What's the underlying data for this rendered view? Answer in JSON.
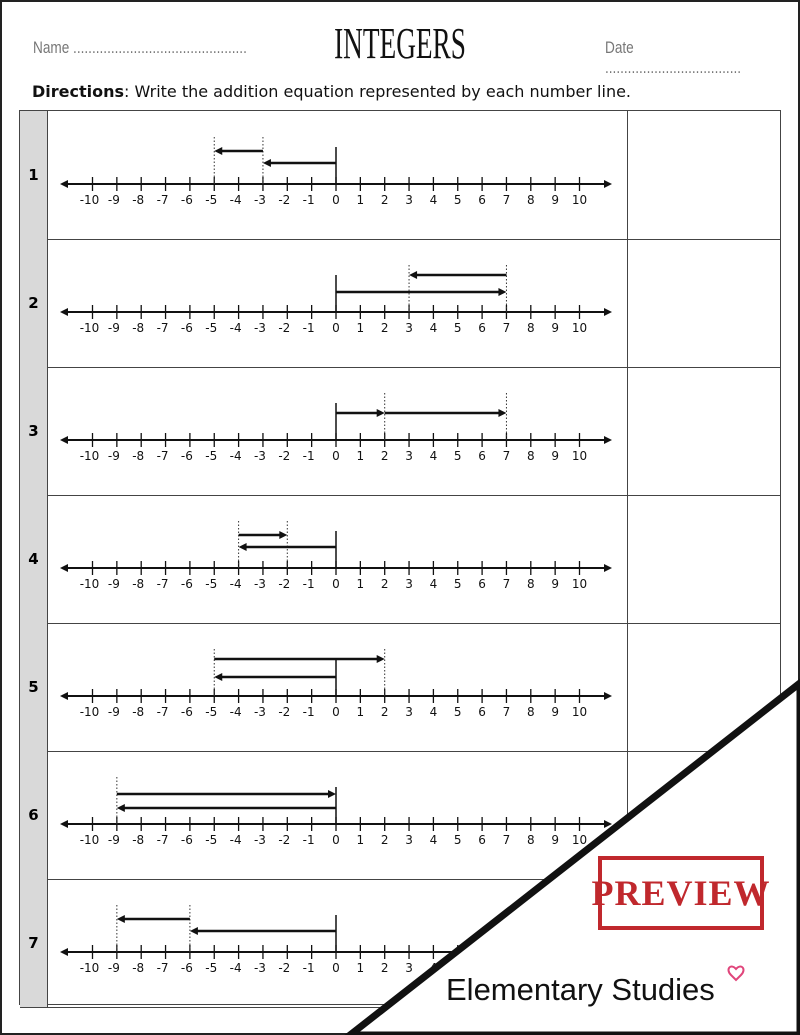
{
  "header": {
    "name_label": "Name ..............................................",
    "title": "INTEGERS",
    "date_label": "Date ...................................."
  },
  "directions": {
    "bold": "Directions",
    "text": ": Write the addition equation represented by each number line."
  },
  "number_line": {
    "min": -10,
    "max": 10
  },
  "problems": [
    {
      "number": "1",
      "moves": [
        [
          0,
          -3
        ],
        [
          -3,
          -5
        ]
      ]
    },
    {
      "number": "2",
      "moves": [
        [
          0,
          7
        ],
        [
          7,
          3
        ]
      ]
    },
    {
      "number": "3",
      "moves": [
        [
          0,
          2
        ],
        [
          2,
          7
        ]
      ]
    },
    {
      "number": "4",
      "moves": [
        [
          0,
          -4
        ],
        [
          -4,
          -2
        ]
      ]
    },
    {
      "number": "5",
      "moves": [
        [
          0,
          -5
        ],
        [
          -5,
          2
        ]
      ]
    },
    {
      "number": "6",
      "moves": [
        [
          0,
          -9
        ],
        [
          -9,
          0
        ]
      ]
    },
    {
      "number": "7",
      "moves": [
        [
          0,
          -6
        ],
        [
          -6,
          -9
        ]
      ]
    }
  ],
  "watermark": {
    "stamp": "PREVIEW",
    "brand": "Elementary Studies",
    "stamp_color": "#c0282d",
    "heart_color": "#e0457b"
  }
}
